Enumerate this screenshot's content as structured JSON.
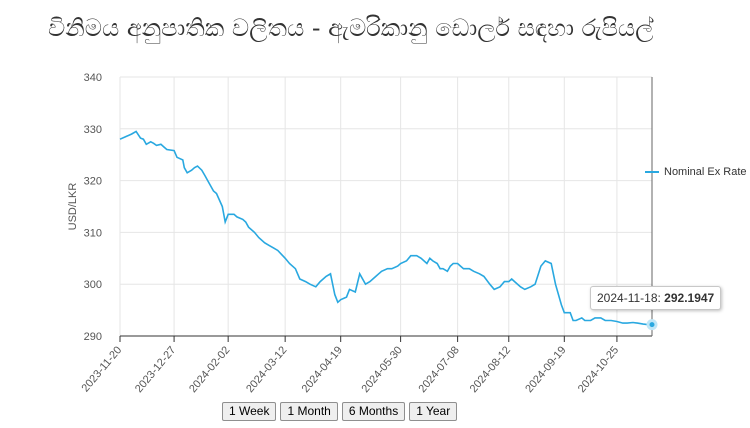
{
  "title": "විනිමය අනුපාතික වලිතය - ඇමරිකානු ඩොලර් සඳහා රුපියල්",
  "legend_label": "Nominal Ex Rate",
  "tooltip": {
    "date": "2024-11-18",
    "value": "292.1947"
  },
  "buttons": [
    "1 Week",
    "1 Month",
    "6 Months",
    "1 Year"
  ],
  "colors": {
    "line": "#29a8e0",
    "grid": "#e6e6e6",
    "axis": "#333333"
  },
  "chart_data": {
    "type": "line",
    "ylabel": "USD/LKR",
    "ylim": [
      290,
      340
    ],
    "yticks": [
      290,
      300,
      310,
      320,
      330,
      340
    ],
    "xticks": [
      "2023-11-20",
      "2023-12-27",
      "2024-02-02",
      "2024-03-12",
      "2024-04-19",
      "2024-05-30",
      "2024-07-08",
      "2024-08-12",
      "2024-09-19",
      "2024-10-25"
    ],
    "grid": true,
    "legend": "right",
    "series": [
      {
        "name": "Nominal Ex Rate",
        "x": [
          "2023-11-20",
          "2023-11-24",
          "2023-11-28",
          "2023-12-01",
          "2023-12-04",
          "2023-12-06",
          "2023-12-08",
          "2023-12-11",
          "2023-12-13",
          "2023-12-15",
          "2023-12-18",
          "2023-12-20",
          "2023-12-22",
          "2023-12-27",
          "2023-12-29",
          "2024-01-02",
          "2024-01-03",
          "2024-01-05",
          "2024-01-08",
          "2024-01-10",
          "2024-01-12",
          "2024-01-15",
          "2024-01-17",
          "2024-01-19",
          "2024-01-23",
          "2024-01-25",
          "2024-01-29",
          "2024-01-31",
          "2024-02-02",
          "2024-02-06",
          "2024-02-08",
          "2024-02-12",
          "2024-02-14",
          "2024-02-16",
          "2024-02-20",
          "2024-02-23",
          "2024-02-27",
          "2024-03-01",
          "2024-03-04",
          "2024-03-07",
          "2024-03-12",
          "2024-03-15",
          "2024-03-19",
          "2024-03-22",
          "2024-03-26",
          "2024-03-29",
          "2024-04-02",
          "2024-04-05",
          "2024-04-09",
          "2024-04-12",
          "2024-04-15",
          "2024-04-17",
          "2024-04-19",
          "2024-04-23",
          "2024-04-25",
          "2024-04-29",
          "2024-05-02",
          "2024-05-06",
          "2024-05-09",
          "2024-05-13",
          "2024-05-15",
          "2024-05-17",
          "2024-05-21",
          "2024-05-24",
          "2024-05-28",
          "2024-05-30",
          "2024-06-03",
          "2024-06-06",
          "2024-06-10",
          "2024-06-13",
          "2024-06-17",
          "2024-06-19",
          "2024-06-21",
          "2024-06-24",
          "2024-06-26",
          "2024-06-28",
          "2024-07-01",
          "2024-07-03",
          "2024-07-05",
          "2024-07-08",
          "2024-07-10",
          "2024-07-12",
          "2024-07-16",
          "2024-07-19",
          "2024-07-23",
          "2024-07-26",
          "2024-07-30",
          "2024-08-02",
          "2024-08-06",
          "2024-08-09",
          "2024-08-12",
          "2024-08-14",
          "2024-08-16",
          "2024-08-20",
          "2024-08-23",
          "2024-08-27",
          "2024-08-30",
          "2024-09-03",
          "2024-09-06",
          "2024-09-10",
          "2024-09-13",
          "2024-09-17",
          "2024-09-19",
          "2024-09-23",
          "2024-09-25",
          "2024-09-27",
          "2024-10-01",
          "2024-10-03",
          "2024-10-07",
          "2024-10-10",
          "2024-10-14",
          "2024-10-17",
          "2024-10-21",
          "2024-10-25",
          "2024-10-29",
          "2024-11-01",
          "2024-11-05",
          "2024-11-08",
          "2024-11-12",
          "2024-11-15",
          "2024-11-18"
        ],
        "y": [
          328.0,
          328.5,
          329.0,
          329.5,
          328.2,
          328.0,
          327.0,
          327.5,
          327.2,
          326.8,
          327.0,
          326.5,
          326.0,
          325.8,
          324.5,
          324.0,
          322.5,
          321.5,
          322.0,
          322.5,
          322.8,
          322.0,
          321.0,
          320.0,
          318.0,
          317.5,
          315.0,
          312.0,
          313.5,
          313.5,
          313.0,
          312.5,
          312.0,
          311.0,
          310.0,
          309.0,
          308.0,
          307.5,
          307.0,
          306.5,
          305.0,
          304.0,
          303.0,
          301.0,
          300.5,
          300.0,
          299.5,
          300.5,
          301.5,
          302.0,
          298.0,
          296.5,
          297.0,
          297.5,
          299.0,
          298.5,
          302.0,
          300.0,
          300.5,
          301.5,
          302.0,
          302.5,
          303.0,
          303.0,
          303.5,
          304.0,
          304.5,
          305.5,
          305.5,
          305.0,
          304.0,
          305.0,
          304.5,
          304.0,
          303.0,
          303.0,
          302.5,
          303.5,
          304.0,
          304.0,
          303.5,
          303.0,
          303.0,
          302.5,
          302.0,
          301.5,
          300.0,
          299.0,
          299.5,
          300.5,
          300.5,
          301.0,
          300.5,
          299.5,
          299.0,
          299.5,
          300.0,
          303.5,
          304.5,
          304.0,
          300.0,
          296.0,
          294.5,
          294.5,
          293.0,
          293.0,
          293.5,
          293.0,
          293.0,
          293.5,
          293.5,
          293.0,
          293.0,
          292.8,
          292.5,
          292.5,
          292.6,
          292.5,
          292.3,
          292.2,
          292.1947
        ]
      }
    ]
  }
}
